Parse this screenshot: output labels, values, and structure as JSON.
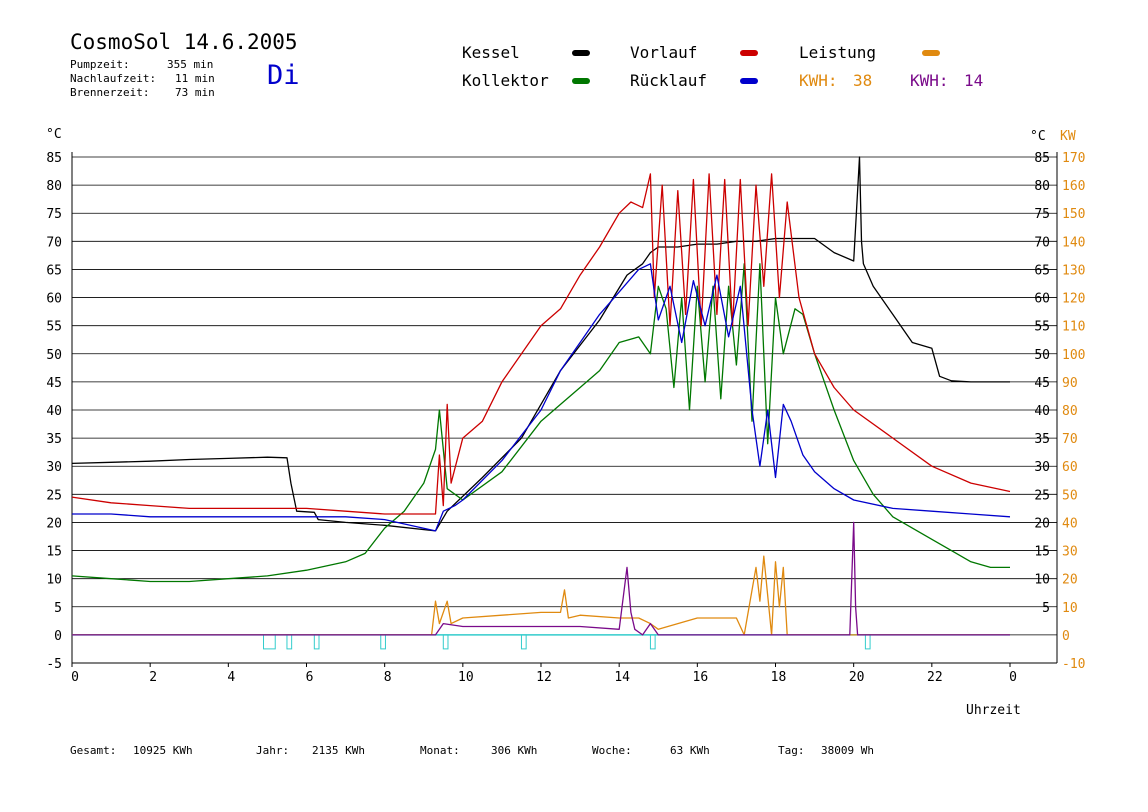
{
  "header": {
    "title": "CosmoSol 14.6.2005",
    "day": "Di",
    "stats": [
      {
        "label": "Pumpzeit:",
        "value": "355 min"
      },
      {
        "label": "Nachlaufzeit:",
        "value": "11 min"
      },
      {
        "label": "Brennerzeit:",
        "value": "73 min"
      }
    ]
  },
  "legend": {
    "kessel": "Kessel",
    "kollektor": "Kollektor",
    "vorlauf": "Vorlauf",
    "ruecklauf": "Rücklauf",
    "leistung": "Leistung",
    "kwh1_label": "KWH:",
    "kwh1_value": "38",
    "kwh2_label": "KWH:",
    "kwh2_value": "14"
  },
  "colors": {
    "kessel": "#000000",
    "kollektor": "#007700",
    "vorlauf": "#cc0000",
    "ruecklauf": "#0000cc",
    "leistung": "#e08a10",
    "kwh2": "#7a0a8a",
    "pump": "#33cccc"
  },
  "footer": {
    "gesamt_label": "Gesamt:",
    "gesamt_value": "10925 KWh",
    "jahr_label": "Jahr:",
    "jahr_value": "2135 KWh",
    "monat_label": "Monat:",
    "monat_value": "306 KWh",
    "woche_label": "Woche:",
    "woche_value": "63 KWh",
    "tag_label": "Tag:",
    "tag_value": "38009 Wh"
  },
  "chart_data": {
    "type": "line",
    "xlabel": "Uhrzeit",
    "ylabel_left": "°C",
    "ylabel_right_unit": "°C",
    "ylabel_right_kw": "KW",
    "xlim": [
      0,
      24
    ],
    "ylim": [
      -5,
      85
    ],
    "ylim_right_kw": [
      -10,
      170
    ],
    "x_ticks": [
      "0",
      "2",
      "4",
      "6",
      "8",
      "10",
      "12",
      "14",
      "16",
      "18",
      "20",
      "22",
      "0"
    ],
    "y_ticks_left": [
      "-5",
      "0",
      "5",
      "10",
      "15",
      "20",
      "25",
      "30",
      "35",
      "40",
      "45",
      "50",
      "55",
      "60",
      "65",
      "70",
      "75",
      "80",
      "85"
    ],
    "y_ticks_right": [
      "",
      "",
      "5",
      "10",
      "15",
      "20",
      "25",
      "30",
      "35",
      "40",
      "45",
      "50",
      "55",
      "60",
      "65",
      "70",
      "75",
      "80",
      "85"
    ],
    "kw_ticks": [
      "-10",
      "0",
      "10",
      "20",
      "30",
      "40",
      "50",
      "60",
      "70",
      "80",
      "90",
      "100",
      "110",
      "120",
      "130",
      "140",
      "150",
      "160",
      "170"
    ],
    "grid": true,
    "series": [
      {
        "name": "Kessel",
        "key": "kessel",
        "x": [
          0,
          1,
          2,
          3,
          4,
          5,
          5.5,
          5.6,
          5.75,
          6.2,
          6.3,
          7,
          8,
          9.3,
          9.6,
          10.5,
          11.5,
          12.5,
          13.5,
          14.2,
          14.6,
          14.8,
          15,
          15.5,
          16,
          16.5,
          17,
          17.5,
          18,
          18.5,
          19,
          19.5,
          20,
          20.15,
          20.2,
          20.25,
          20.5,
          21,
          21.3,
          21.5,
          22,
          22.2,
          22.5,
          23,
          24
        ],
        "y": [
          30.5,
          30.7,
          30.9,
          31.2,
          31.4,
          31.6,
          31.5,
          27,
          22,
          21.8,
          20.5,
          20,
          19.5,
          18.5,
          22,
          28,
          35,
          47,
          56,
          64,
          66,
          68,
          69,
          69,
          69.5,
          69.5,
          70,
          70,
          70.5,
          70.5,
          70.5,
          68,
          66.5,
          85,
          70,
          66,
          62,
          57,
          54,
          52,
          51,
          46,
          45.2,
          45,
          45
        ]
      },
      {
        "name": "Kollektor",
        "key": "kollektor",
        "x": [
          0,
          1,
          2,
          3,
          4,
          5,
          6,
          7,
          7.5,
          8,
          8.5,
          9,
          9.3,
          9.4,
          9.6,
          10,
          11,
          12,
          12.5,
          13,
          13.5,
          14,
          14.5,
          14.8,
          15,
          15.2,
          15.4,
          15.6,
          15.8,
          16,
          16.2,
          16.4,
          16.6,
          16.8,
          17,
          17.2,
          17.4,
          17.6,
          17.8,
          18,
          18.2,
          18.5,
          18.7,
          19,
          19.5,
          20,
          20.5,
          21,
          21.5,
          22,
          22.5,
          23,
          23.5,
          24
        ],
        "y": [
          10.5,
          10,
          9.5,
          9.5,
          10,
          10.5,
          11.5,
          13,
          14.5,
          19,
          22,
          27,
          33,
          40,
          26,
          24,
          29,
          38,
          41,
          44,
          47,
          52,
          53,
          50,
          62,
          58,
          44,
          60,
          40,
          62,
          45,
          62,
          42,
          62,
          48,
          66,
          38,
          66,
          34,
          60,
          50,
          58,
          57,
          50,
          40,
          31,
          25,
          21,
          19,
          17,
          15,
          13,
          12,
          12
        ]
      },
      {
        "name": "Vorlauf",
        "key": "vorlauf",
        "x": [
          0,
          1,
          2,
          3,
          4,
          5,
          6,
          7,
          8,
          9.3,
          9.4,
          9.5,
          9.6,
          9.7,
          10,
          10.5,
          11,
          11.5,
          12,
          12.5,
          13,
          13.5,
          14,
          14.3,
          14.6,
          14.8,
          14.9,
          15.1,
          15.3,
          15.5,
          15.7,
          15.9,
          16.1,
          16.3,
          16.5,
          16.7,
          16.9,
          17.1,
          17.3,
          17.5,
          17.7,
          17.9,
          18.1,
          18.3,
          18.6,
          19,
          19.5,
          20,
          21,
          22,
          23,
          24
        ],
        "y": [
          24.5,
          23.5,
          23,
          22.5,
          22.5,
          22.5,
          22.5,
          22,
          21.5,
          21.5,
          32,
          23,
          41,
          27,
          35,
          38,
          45,
          50,
          55,
          58,
          64,
          69,
          75,
          77,
          76,
          82,
          60,
          80,
          55,
          79,
          57,
          81,
          55,
          82,
          57,
          81,
          55,
          81,
          55,
          80,
          62,
          82,
          60,
          77,
          60,
          50,
          44,
          40,
          35,
          30,
          27,
          25.5
        ]
      },
      {
        "name": "Rücklauf",
        "key": "ruecklauf",
        "x": [
          0,
          1,
          2,
          3,
          4,
          5,
          6,
          7,
          8,
          9.3,
          9.5,
          9.8,
          10,
          11,
          12,
          12.5,
          13,
          13.5,
          14,
          14.5,
          14.8,
          15,
          15.3,
          15.6,
          15.9,
          16.2,
          16.5,
          16.8,
          17.1,
          17.4,
          17.6,
          17.8,
          18,
          18.2,
          18.4,
          18.7,
          19,
          19.5,
          20,
          21,
          22,
          23,
          24
        ],
        "y": [
          21.5,
          21.5,
          21,
          21,
          21,
          21,
          21,
          21,
          20.5,
          18.5,
          22,
          23,
          24,
          31,
          40,
          47,
          52,
          57,
          61,
          65,
          66,
          56,
          62,
          52,
          63,
          55,
          64,
          53,
          62,
          40,
          30,
          40,
          28,
          41,
          38,
          32,
          29,
          26,
          24,
          22.5,
          22,
          21.5,
          21
        ]
      },
      {
        "name": "Leistung",
        "key": "leistung",
        "x": [
          0,
          9.2,
          9.3,
          9.4,
          9.6,
          9.7,
          10,
          11,
          12,
          12.5,
          12.6,
          12.7,
          13,
          14,
          14.5,
          14.8,
          15,
          15.5,
          16,
          16.5,
          17,
          17.2,
          17.5,
          17.6,
          17.7,
          17.9,
          18,
          18.1,
          18.2,
          18.3,
          24
        ],
        "y": [
          0,
          0,
          6,
          2,
          6,
          2,
          3,
          3.5,
          4,
          4,
          8,
          3,
          3.5,
          3,
          3,
          2,
          1,
          2,
          3,
          3,
          3,
          0,
          12,
          6,
          14,
          0,
          13,
          5,
          12,
          0,
          0
        ]
      },
      {
        "name": "KWH 14",
        "key": "kwh2",
        "x": [
          0,
          9.3,
          9.5,
          10,
          11,
          12,
          13,
          14,
          14.2,
          14.3,
          14.4,
          14.6,
          14.8,
          15,
          17,
          19.9,
          20,
          20.05,
          20.1,
          20.15,
          24
        ],
        "y": [
          0,
          0,
          2,
          1.5,
          1.5,
          1.5,
          1.5,
          1,
          12,
          4,
          1,
          0,
          2,
          0,
          0,
          0,
          20,
          5,
          0,
          0,
          0
        ]
      }
    ]
  }
}
